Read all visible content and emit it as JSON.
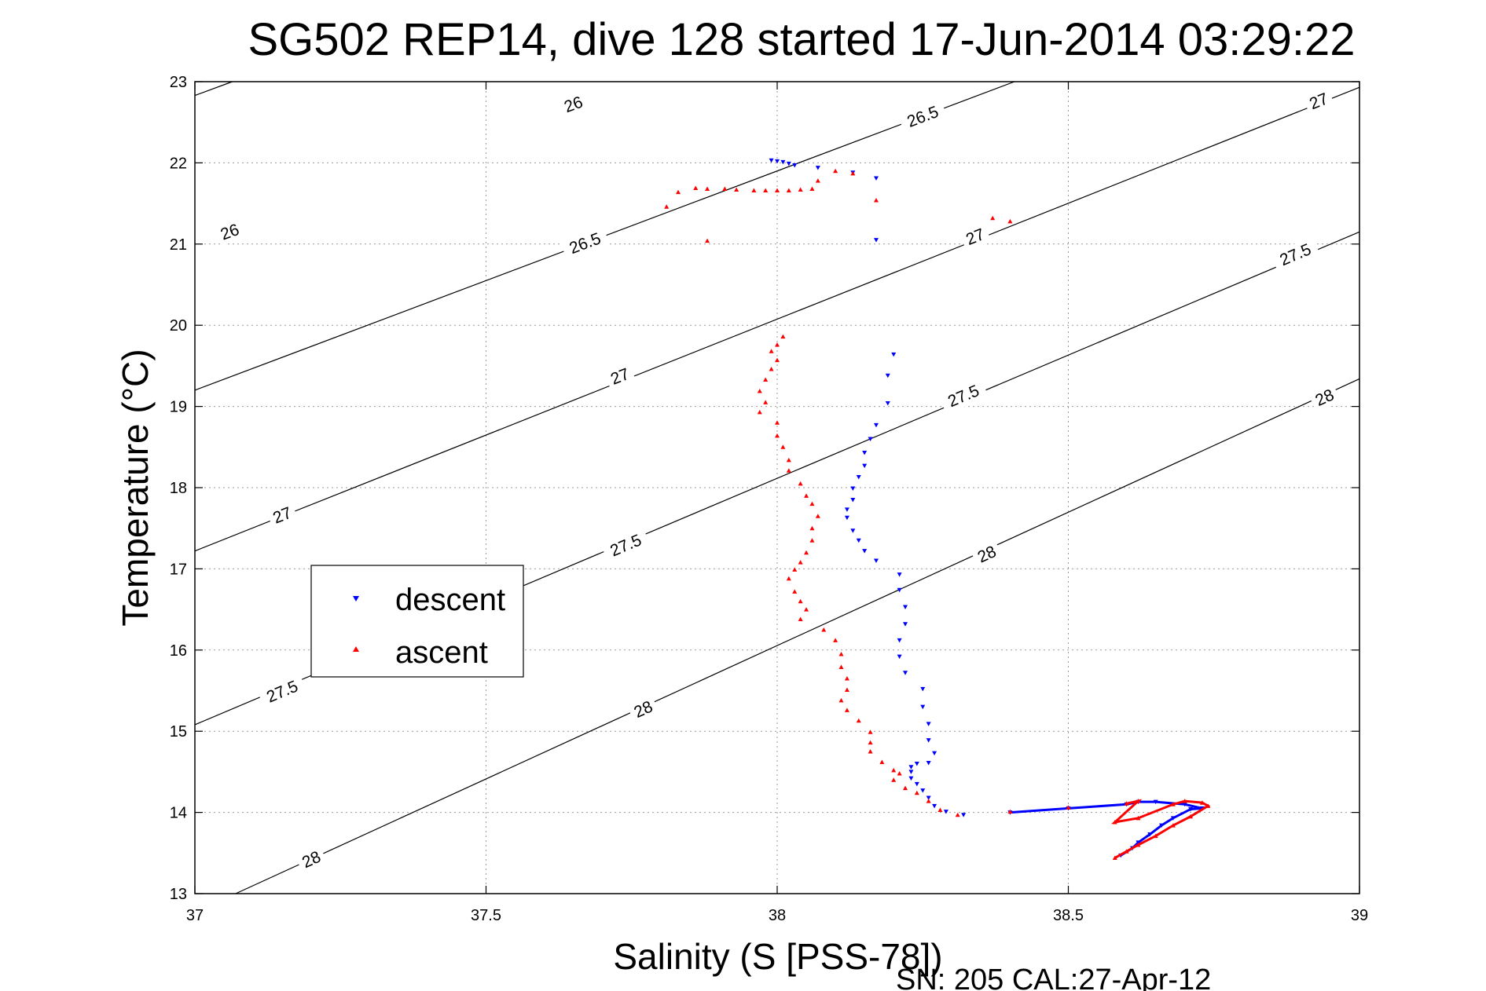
{
  "chart_data": {
    "type": "scatter",
    "title": "SG502 REP14, dive 128 started 17-Jun-2014 03:29:22",
    "xlabel": "Salinity (S [PSS-78])",
    "ylabel": "Temperature (°C)",
    "xlim": [
      37,
      39
    ],
    "ylim": [
      13,
      23
    ],
    "x_ticks": [
      {
        "value": 37,
        "label": "37"
      },
      {
        "value": 37.5,
        "label": "37.5"
      },
      {
        "value": 38,
        "label": "38"
      },
      {
        "value": 38.5,
        "label": "38.5"
      },
      {
        "value": 39,
        "label": "39"
      }
    ],
    "y_ticks": [
      {
        "value": 13,
        "label": "13"
      },
      {
        "value": 14,
        "label": "14"
      },
      {
        "value": 15,
        "label": "15"
      },
      {
        "value": 16,
        "label": "16"
      },
      {
        "value": 17,
        "label": "17"
      },
      {
        "value": 18,
        "label": "18"
      },
      {
        "value": 19,
        "label": "19"
      },
      {
        "value": 20,
        "label": "20"
      },
      {
        "value": 21,
        "label": "21"
      },
      {
        "value": 22,
        "label": "22"
      },
      {
        "value": 23,
        "label": "23"
      }
    ],
    "grid": true,
    "legend_position": "left-middle",
    "footer": "SN: 205  CAL:27-Apr-12",
    "density_contours": [
      {
        "level": 26,
        "line": [
          [
            37,
            22.83
          ],
          [
            39,
            28.12
          ]
        ],
        "labels": [
          {
            "text": "26",
            "x": 37.06,
            "y": 21.15
          },
          {
            "text": "26",
            "x": 37.65,
            "y": 22.72
          }
        ]
      },
      {
        "level": 26.5,
        "line": [
          [
            37,
            19.2
          ],
          [
            39,
            24.6
          ]
        ],
        "labels": [
          {
            "text": "26.5",
            "x": 37.67,
            "y": 21.01
          },
          {
            "text": "26.5",
            "x": 38.25,
            "y": 22.57
          }
        ]
      },
      {
        "level": 27,
        "line": [
          [
            37,
            17.22
          ],
          [
            39,
            22.93
          ]
        ],
        "labels": [
          {
            "text": "27",
            "x": 37.15,
            "y": 17.66
          },
          {
            "text": "27",
            "x": 37.73,
            "y": 19.37
          },
          {
            "text": "27",
            "x": 38.34,
            "y": 21.09
          },
          {
            "text": "27",
            "x": 38.93,
            "y": 22.76
          }
        ]
      },
      {
        "level": 27.5,
        "line": [
          [
            37,
            15.08
          ],
          [
            39,
            21.15
          ]
        ],
        "labels": [
          {
            "text": "27.5",
            "x": 37.15,
            "y": 15.49
          },
          {
            "text": "27.5",
            "x": 37.74,
            "y": 17.29
          },
          {
            "text": "27.5",
            "x": 38.32,
            "y": 19.13
          },
          {
            "text": "27.5",
            "x": 38.89,
            "y": 20.87
          }
        ]
      },
      {
        "level": 28,
        "line": [
          [
            37.07,
            13.0
          ],
          [
            39,
            19.34
          ]
        ],
        "labels": [
          {
            "text": "28",
            "x": 37.2,
            "y": 13.42
          },
          {
            "text": "28",
            "x": 37.77,
            "y": 15.27
          },
          {
            "text": "28",
            "x": 38.36,
            "y": 17.18
          },
          {
            "text": "28",
            "x": 38.94,
            "y": 19.11
          }
        ]
      }
    ],
    "series": [
      {
        "name": "descent",
        "color": "#0000ff",
        "marker": "triangle-down",
        "points": [
          [
            37.99,
            22.03
          ],
          [
            38.0,
            22.02
          ],
          [
            38.01,
            22.01
          ],
          [
            38.02,
            21.99
          ],
          [
            38.03,
            21.97
          ],
          [
            38.07,
            21.94
          ],
          [
            38.13,
            21.88
          ],
          [
            38.17,
            21.81
          ],
          [
            38.17,
            21.05
          ],
          [
            38.2,
            19.64
          ],
          [
            38.19,
            19.38
          ],
          [
            38.19,
            19.04
          ],
          [
            38.17,
            18.77
          ],
          [
            38.16,
            18.6
          ],
          [
            38.15,
            18.43
          ],
          [
            38.15,
            18.27
          ],
          [
            38.14,
            18.13
          ],
          [
            38.13,
            17.99
          ],
          [
            38.13,
            17.85
          ],
          [
            38.12,
            17.73
          ],
          [
            38.12,
            17.63
          ],
          [
            38.13,
            17.47
          ],
          [
            38.14,
            17.35
          ],
          [
            38.15,
            17.22
          ],
          [
            38.17,
            17.1
          ],
          [
            38.21,
            16.93
          ],
          [
            38.21,
            16.74
          ],
          [
            38.22,
            16.53
          ],
          [
            38.22,
            16.32
          ],
          [
            38.21,
            16.12
          ],
          [
            38.21,
            15.92
          ],
          [
            38.22,
            15.72
          ],
          [
            38.25,
            15.52
          ],
          [
            38.25,
            15.3
          ],
          [
            38.26,
            15.09
          ],
          [
            38.26,
            14.89
          ],
          [
            38.27,
            14.73
          ],
          [
            38.26,
            14.61
          ],
          [
            38.24,
            14.6
          ],
          [
            38.23,
            14.56
          ],
          [
            38.23,
            14.5
          ],
          [
            38.23,
            14.42
          ],
          [
            38.24,
            14.35
          ],
          [
            38.25,
            14.27
          ],
          [
            38.26,
            14.18
          ],
          [
            38.27,
            14.08
          ],
          [
            38.29,
            14.01
          ],
          [
            38.32,
            13.97
          ],
          [
            38.4,
            14.0
          ],
          [
            38.5,
            14.05
          ],
          [
            38.6,
            14.1
          ],
          [
            38.62,
            14.13
          ],
          [
            38.65,
            14.13
          ],
          [
            38.7,
            14.1
          ],
          [
            38.73,
            14.05
          ],
          [
            38.71,
            14.04
          ],
          [
            38.68,
            13.93
          ],
          [
            38.66,
            13.84
          ],
          [
            38.64,
            13.73
          ],
          [
            38.62,
            13.63
          ],
          [
            38.61,
            13.56
          ],
          [
            38.59,
            13.47
          ]
        ]
      },
      {
        "name": "ascent",
        "color": "#ff0000",
        "marker": "triangle-up",
        "points": [
          [
            37.81,
            21.46
          ],
          [
            37.83,
            21.64
          ],
          [
            37.86,
            21.69
          ],
          [
            37.88,
            21.68
          ],
          [
            37.91,
            21.68
          ],
          [
            37.93,
            21.67
          ],
          [
            37.96,
            21.66
          ],
          [
            37.98,
            21.66
          ],
          [
            38.0,
            21.66
          ],
          [
            38.02,
            21.66
          ],
          [
            38.04,
            21.67
          ],
          [
            38.06,
            21.68
          ],
          [
            38.07,
            21.78
          ],
          [
            38.1,
            21.9
          ],
          [
            38.13,
            21.87
          ],
          [
            38.17,
            21.54
          ],
          [
            37.88,
            21.04
          ],
          [
            38.37,
            21.32
          ],
          [
            38.4,
            21.28
          ],
          [
            38.01,
            19.86
          ],
          [
            38.0,
            19.76
          ],
          [
            37.99,
            19.68
          ],
          [
            38.0,
            19.57
          ],
          [
            37.99,
            19.46
          ],
          [
            37.98,
            19.33
          ],
          [
            37.97,
            19.19
          ],
          [
            37.98,
            19.05
          ],
          [
            37.97,
            18.93
          ],
          [
            38.0,
            18.8
          ],
          [
            38.0,
            18.64
          ],
          [
            38.01,
            18.5
          ],
          [
            38.02,
            18.34
          ],
          [
            38.02,
            18.21
          ],
          [
            38.04,
            18.05
          ],
          [
            38.05,
            17.9
          ],
          [
            38.06,
            17.8
          ],
          [
            38.07,
            17.65
          ],
          [
            38.06,
            17.5
          ],
          [
            38.06,
            17.35
          ],
          [
            38.05,
            17.2
          ],
          [
            38.04,
            17.08
          ],
          [
            38.03,
            16.99
          ],
          [
            38.02,
            16.88
          ],
          [
            38.03,
            16.72
          ],
          [
            38.04,
            16.6
          ],
          [
            38.05,
            16.5
          ],
          [
            38.04,
            16.38
          ],
          [
            38.08,
            16.25
          ],
          [
            38.1,
            16.12
          ],
          [
            38.11,
            15.95
          ],
          [
            38.11,
            15.79
          ],
          [
            38.12,
            15.65
          ],
          [
            38.12,
            15.51
          ],
          [
            38.11,
            15.38
          ],
          [
            38.12,
            15.26
          ],
          [
            38.14,
            15.13
          ],
          [
            38.16,
            14.99
          ],
          [
            38.16,
            14.86
          ],
          [
            38.16,
            14.75
          ],
          [
            38.18,
            14.62
          ],
          [
            38.2,
            14.52
          ],
          [
            38.21,
            14.48
          ],
          [
            38.2,
            14.4
          ],
          [
            38.22,
            14.3
          ],
          [
            38.24,
            14.24
          ],
          [
            38.26,
            14.14
          ],
          [
            38.28,
            14.03
          ],
          [
            38.31,
            13.97
          ],
          [
            38.4,
            14.01
          ],
          [
            38.5,
            14.06
          ],
          [
            38.6,
            14.11
          ],
          [
            38.62,
            14.14
          ],
          [
            38.58,
            13.88
          ],
          [
            38.62,
            13.93
          ],
          [
            38.68,
            14.1
          ],
          [
            38.7,
            14.14
          ],
          [
            38.73,
            14.12
          ],
          [
            38.74,
            14.08
          ],
          [
            38.71,
            13.95
          ],
          [
            38.68,
            13.84
          ],
          [
            38.65,
            13.71
          ],
          [
            38.62,
            13.6
          ],
          [
            38.6,
            13.52
          ],
          [
            38.58,
            13.44
          ]
        ]
      }
    ]
  }
}
